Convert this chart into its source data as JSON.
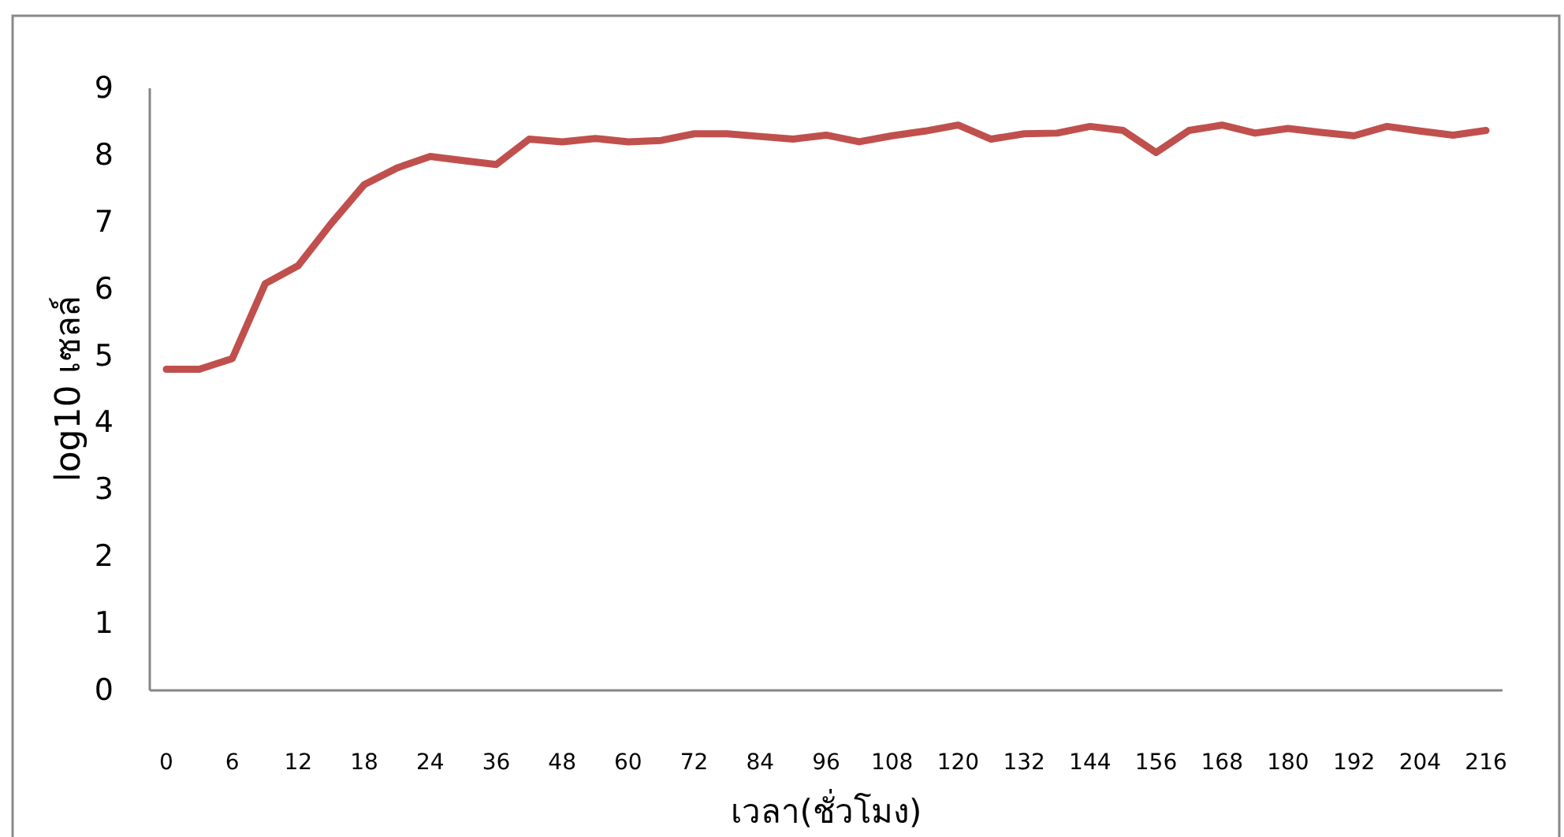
{
  "chart_data": {
    "type": "line",
    "xlabel": "เวลา(ชั่วโมง)",
    "ylabel": "log10 เซลล์",
    "categories": [
      "0",
      null,
      "6",
      null,
      "12",
      null,
      "18",
      null,
      "24",
      null,
      "36",
      null,
      "48",
      null,
      "60",
      null,
      "72",
      null,
      "84",
      null,
      "96",
      null,
      "108",
      null,
      "120",
      null,
      "132",
      null,
      "144",
      null,
      "156",
      null,
      "168",
      null,
      "180",
      null,
      "192",
      null,
      "204",
      null,
      "216"
    ],
    "series": [
      {
        "color": "#c0504d",
        "values": [
          4.8,
          4.8,
          4.96,
          6.08,
          6.35,
          6.98,
          7.56,
          7.81,
          7.98,
          7.92,
          7.86,
          8.24,
          8.2,
          8.25,
          8.2,
          8.22,
          8.32,
          8.32,
          8.28,
          8.24,
          8.3,
          8.2,
          8.29,
          8.36,
          8.45,
          8.24,
          8.32,
          8.33,
          8.43,
          8.37,
          8.04,
          8.37,
          8.45,
          8.33,
          8.4,
          8.34,
          8.29,
          8.43,
          8.36,
          8.3,
          8.37
        ]
      }
    ],
    "ylim": [
      0,
      9
    ],
    "yticks": [
      0,
      1,
      2,
      3,
      4,
      5,
      6,
      7,
      8,
      9
    ],
    "marker": "none",
    "line_style": "solid"
  }
}
